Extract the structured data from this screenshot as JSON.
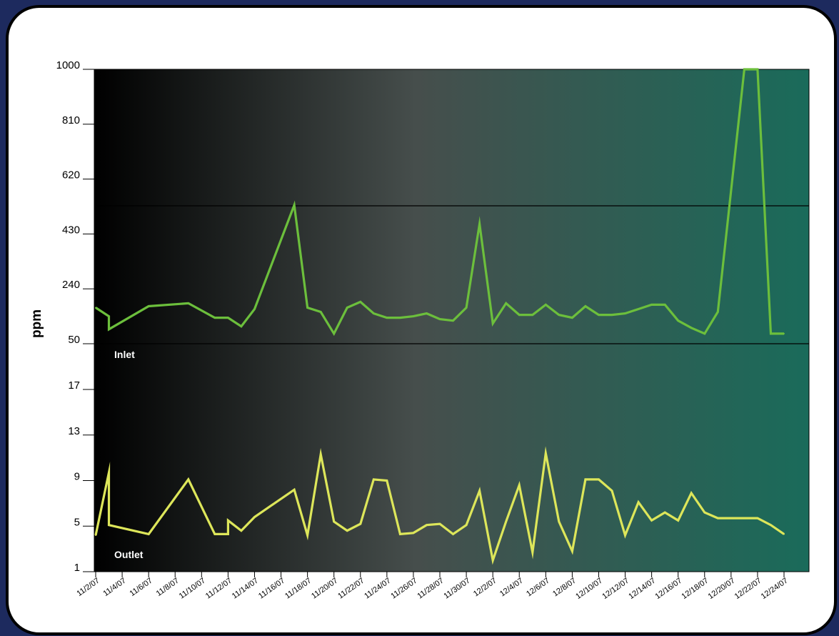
{
  "colors": {
    "frame_bg": "#1d2a5e",
    "panel_bg": "#ffffff",
    "plot_gradient_start": "#000000",
    "plot_gradient_mid": "#464e4c",
    "plot_gradient_end": "#1a6b5a",
    "inlet_line": "#6cbf3c",
    "outlet_line": "#dde65a"
  },
  "chart_data": {
    "type": "line",
    "ylabel": "ppm",
    "grid": false,
    "x_ticks": [
      "11/2/07",
      "11/4/07",
      "11/6/07",
      "11/8/07",
      "11/10/07",
      "11/12/07",
      "11/14/07",
      "11/16/07",
      "11/18/07",
      "11/20/07",
      "11/22/07",
      "11/24/07",
      "11/26/07",
      "11/28/07",
      "11/30/07",
      "12/2/07",
      "12/4/07",
      "12/6/07",
      "12/8/07",
      "12/10/07",
      "12/12/07",
      "12/14/07",
      "12/16/07",
      "12/18/07",
      "12/20/07",
      "12/22/07",
      "12/24/07"
    ],
    "panels": [
      {
        "label": "Inlet",
        "y_ticks": [
          "1000",
          "810",
          "620",
          "430",
          "240",
          "50"
        ],
        "ylim": [
          50,
          1000
        ],
        "series": [
          {
            "name": "Inlet",
            "color": "#6cbf3c",
            "x": [
              "11/2/07",
              "11/3/07",
              "11/3/07",
              "11/6/07",
              "11/9/07",
              "11/11/07",
              "11/12/07",
              "11/13/07",
              "11/14/07",
              "11/17/07",
              "11/18/07",
              "11/19/07",
              "11/20/07",
              "11/21/07",
              "11/22/07",
              "11/23/07",
              "11/24/07",
              "11/25/07",
              "11/26/07",
              "11/27/07",
              "11/28/07",
              "11/29/07",
              "11/30/07",
              "12/1/07",
              "12/2/07",
              "12/3/07",
              "12/4/07",
              "12/5/07",
              "12/6/07",
              "12/7/07",
              "12/8/07",
              "12/9/07",
              "12/10/07",
              "12/11/07",
              "12/12/07",
              "12/13/07",
              "12/14/07",
              "12/15/07",
              "12/16/07",
              "12/17/07",
              "12/18/07",
              "12/19/07",
              "12/21/07",
              "12/22/07",
              "12/23/07",
              "12/24/07"
            ],
            "y": [
              175,
              145,
              100,
              180,
              190,
              140,
              140,
              110,
              170,
              530,
              175,
              160,
              85,
              175,
              195,
              155,
              140,
              140,
              145,
              155,
              135,
              130,
              175,
              465,
              120,
              190,
              150,
              150,
              185,
              150,
              140,
              180,
              150,
              150,
              155,
              170,
              185,
              185,
              130,
              105,
              85,
              160,
              1000,
              1000,
              85,
              85
            ]
          }
        ]
      },
      {
        "label": "Outlet",
        "y_ticks": [
          "17",
          "13",
          "9",
          "5",
          "1"
        ],
        "ylim": [
          1,
          17
        ],
        "series": [
          {
            "name": "Outlet",
            "color": "#dde65a",
            "x": [
              "11/2/07",
              "11/3/07",
              "11/3/07",
              "11/6/07",
              "11/9/07",
              "11/11/07",
              "11/12/07",
              "11/12/07",
              "11/13/07",
              "11/14/07",
              "11/17/07",
              "11/18/07",
              "11/19/07",
              "11/20/07",
              "11/21/07",
              "11/22/07",
              "11/23/07",
              "11/24/07",
              "11/25/07",
              "11/26/07",
              "11/27/07",
              "11/28/07",
              "11/29/07",
              "11/30/07",
              "12/1/07",
              "12/2/07",
              "12/3/07",
              "12/4/07",
              "12/5/07",
              "12/6/07",
              "12/7/07",
              "12/8/07",
              "12/9/07",
              "12/10/07",
              "12/11/07",
              "12/12/07",
              "12/13/07",
              "12/14/07",
              "12/15/07",
              "12/16/07",
              "12/17/07",
              "12/18/07",
              "12/19/07",
              "12/22/07",
              "12/23/07",
              "12/24/07"
            ],
            "y": [
              4.2,
              9.7,
              5.1,
              4.3,
              9.1,
              4.3,
              4.3,
              5.5,
              4.6,
              5.8,
              8.2,
              4.2,
              11.3,
              5.4,
              4.6,
              5.2,
              9.1,
              9.0,
              4.3,
              4.4,
              5.1,
              5.2,
              4.3,
              5.1,
              8.1,
              2.0,
              5.4,
              8.6,
              2.7,
              11.4,
              5.4,
              2.8,
              9.1,
              9.1,
              8.1,
              4.2,
              7.1,
              5.5,
              6.2,
              5.5,
              7.9,
              6.2,
              5.7,
              5.7,
              5.1,
              4.3
            ]
          }
        ]
      }
    ]
  }
}
